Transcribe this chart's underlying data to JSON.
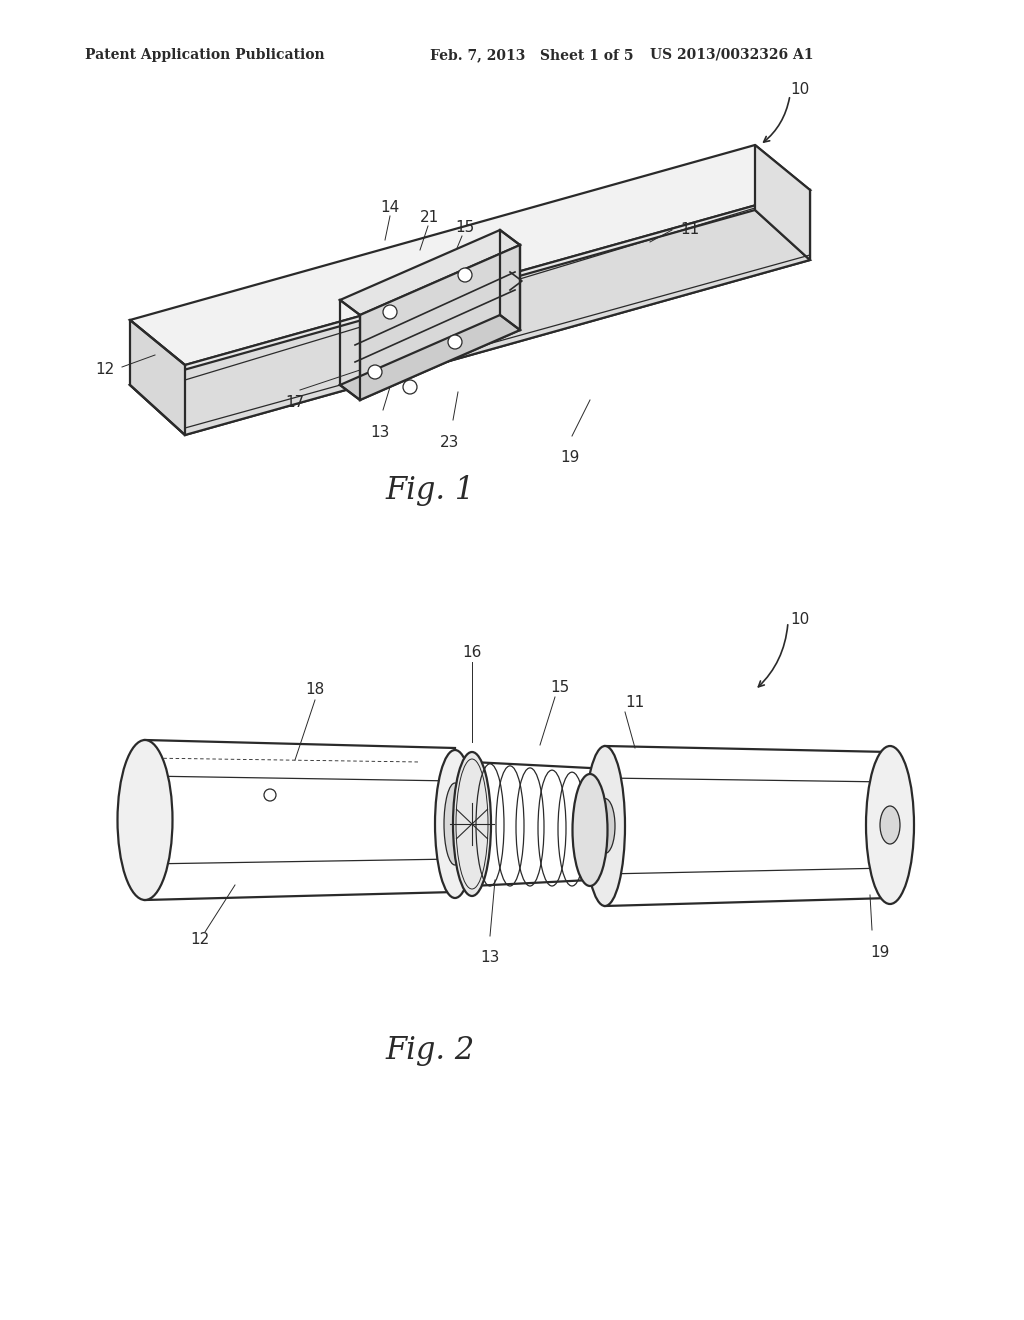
{
  "header_left": "Patent Application Publication",
  "header_mid": "Feb. 7, 2013   Sheet 1 of 5",
  "header_right": "US 2013/0032326 A1",
  "fig1_caption": "Fig. 1",
  "fig2_caption": "Fig. 2",
  "bg_color": "#ffffff",
  "line_color": "#2a2a2a",
  "line_width": 1.6,
  "thin_line": 0.9
}
